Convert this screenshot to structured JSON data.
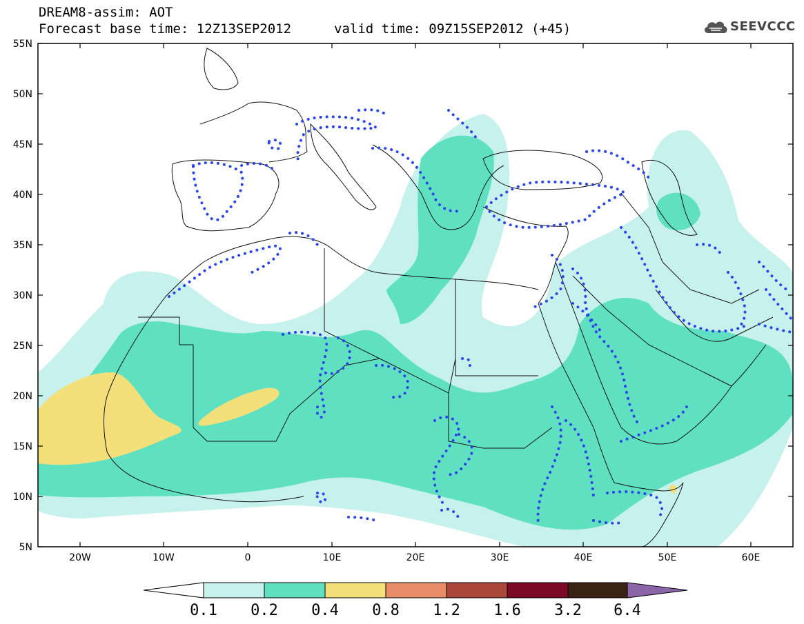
{
  "header": {
    "title": "DREAM8-assim: AOT",
    "base_time": "Forecast base time: 12Z13SEP2012",
    "valid_time": "valid time: 09Z15SEP2012 (+45)"
  },
  "logo": {
    "icon": "cloud-icon",
    "text": "SEEVCCC"
  },
  "axes": {
    "latitudes": [
      "55N",
      "50N",
      "45N",
      "40N",
      "35N",
      "30N",
      "25N",
      "20N",
      "15N",
      "10N",
      "5N"
    ],
    "longitudes": [
      "20W",
      "10W",
      "0",
      "10E",
      "20E",
      "30E",
      "40E",
      "50E",
      "60E"
    ]
  },
  "colorbar": {
    "labels": [
      "0.1",
      "0.2",
      "0.4",
      "0.8",
      "1.2",
      "1.6",
      "3.2",
      "6.4"
    ],
    "colors": [
      "#ffffff",
      "#c7f1ec",
      "#5fe0c0",
      "#f4e07a",
      "#e88c68",
      "#a8473a",
      "#7a0a26",
      "#3c2414",
      "#8c64a8"
    ]
  },
  "colors": {
    "aot_01_02": "#c7f1ec",
    "aot_02_04": "#5fe0c0",
    "aot_04_08": "#f4e07a",
    "contour_dots": "#2a46e8"
  }
}
